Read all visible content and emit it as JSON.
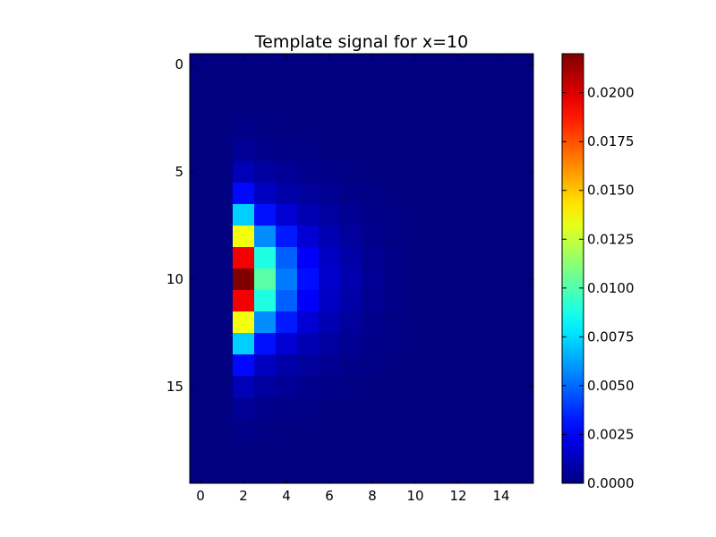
{
  "chart_data": {
    "type": "heatmap",
    "title": "Template signal for x=10",
    "xlabel": "",
    "ylabel": "",
    "n_rows": 20,
    "n_cols": 16,
    "x_ticks": [
      "0",
      "2",
      "4",
      "6",
      "8",
      "10",
      "12",
      "14"
    ],
    "y_ticks": [
      "0",
      "5",
      "10",
      "15"
    ],
    "colormap": "jet",
    "colorbar": {
      "min": 0.0,
      "max": 0.022,
      "ticks": [
        "0.0000",
        "0.0025",
        "0.0050",
        "0.0075",
        "0.0100",
        "0.0125",
        "0.0150",
        "0.0175",
        "0.0200"
      ]
    },
    "values": [
      [
        0,
        0,
        0,
        0,
        0,
        0,
        0,
        0,
        0,
        0,
        0,
        0,
        0,
        0,
        0,
        0
      ],
      [
        0,
        0,
        0,
        0,
        0,
        0,
        0,
        0,
        0,
        0,
        0,
        0,
        0,
        0,
        0,
        0
      ],
      [
        0,
        0,
        0,
        0,
        0,
        0,
        0,
        0,
        0,
        0,
        0,
        0,
        0,
        0,
        0,
        0
      ],
      [
        0,
        0,
        0.0002,
        0.0001,
        0,
        0,
        0,
        0,
        0,
        0,
        0,
        0,
        0,
        0,
        0,
        0
      ],
      [
        0,
        0,
        0.0005,
        0.0003,
        0.0002,
        0.0001,
        0,
        0,
        0,
        0,
        0,
        0,
        0,
        0,
        0,
        0
      ],
      [
        0,
        0,
        0.0012,
        0.0007,
        0.0005,
        0.0003,
        0.0002,
        0.0001,
        0,
        0,
        0,
        0,
        0,
        0,
        0,
        0
      ],
      [
        0,
        0,
        0.0029,
        0.0014,
        0.0009,
        0.0006,
        0.0004,
        0.0002,
        0.0001,
        0,
        0,
        0,
        0,
        0,
        0,
        0
      ],
      [
        0,
        0,
        0.0072,
        0.0031,
        0.0018,
        0.0011,
        0.0007,
        0.0004,
        0.0002,
        0.0001,
        0,
        0,
        0,
        0,
        0,
        0
      ],
      [
        0,
        0,
        0.0135,
        0.0058,
        0.0033,
        0.0018,
        0.0011,
        0.0006,
        0.0003,
        0.0001,
        0,
        0,
        0,
        0,
        0,
        0
      ],
      [
        0,
        0,
        0.0195,
        0.0089,
        0.0048,
        0.0026,
        0.0015,
        0.0009,
        0.0004,
        0.0002,
        0,
        0,
        0,
        0,
        0,
        0
      ],
      [
        0,
        0,
        0.022,
        0.0102,
        0.0054,
        0.003,
        0.0017,
        0.001,
        0.0005,
        0.0002,
        0,
        0,
        0,
        0,
        0,
        0
      ],
      [
        0,
        0,
        0.0195,
        0.0089,
        0.0048,
        0.0026,
        0.0015,
        0.0009,
        0.0004,
        0.0002,
        0,
        0,
        0,
        0,
        0,
        0
      ],
      [
        0,
        0,
        0.0135,
        0.0058,
        0.0033,
        0.0018,
        0.0011,
        0.0006,
        0.0003,
        0.0001,
        0,
        0,
        0,
        0,
        0,
        0
      ],
      [
        0,
        0,
        0.0072,
        0.0031,
        0.0018,
        0.0011,
        0.0007,
        0.0004,
        0.0002,
        0.0001,
        0,
        0,
        0,
        0,
        0,
        0
      ],
      [
        0,
        0,
        0.0029,
        0.0014,
        0.0009,
        0.0006,
        0.0004,
        0.0002,
        0.0001,
        0,
        0,
        0,
        0,
        0,
        0,
        0
      ],
      [
        0,
        0,
        0.0012,
        0.0007,
        0.0005,
        0.0003,
        0.0002,
        0.0001,
        0,
        0,
        0,
        0,
        0,
        0,
        0,
        0
      ],
      [
        0,
        0,
        0.0005,
        0.0003,
        0.0002,
        0.0001,
        0,
        0,
        0,
        0,
        0,
        0,
        0,
        0,
        0,
        0
      ],
      [
        0,
        0,
        0.0002,
        0.0001,
        0,
        0,
        0,
        0,
        0,
        0,
        0,
        0,
        0,
        0,
        0,
        0
      ],
      [
        0,
        0,
        0,
        0,
        0,
        0,
        0,
        0,
        0,
        0,
        0,
        0,
        0,
        0,
        0,
        0
      ],
      [
        0,
        0,
        0,
        0,
        0,
        0,
        0,
        0,
        0,
        0,
        0,
        0,
        0,
        0,
        0,
        0
      ]
    ]
  }
}
